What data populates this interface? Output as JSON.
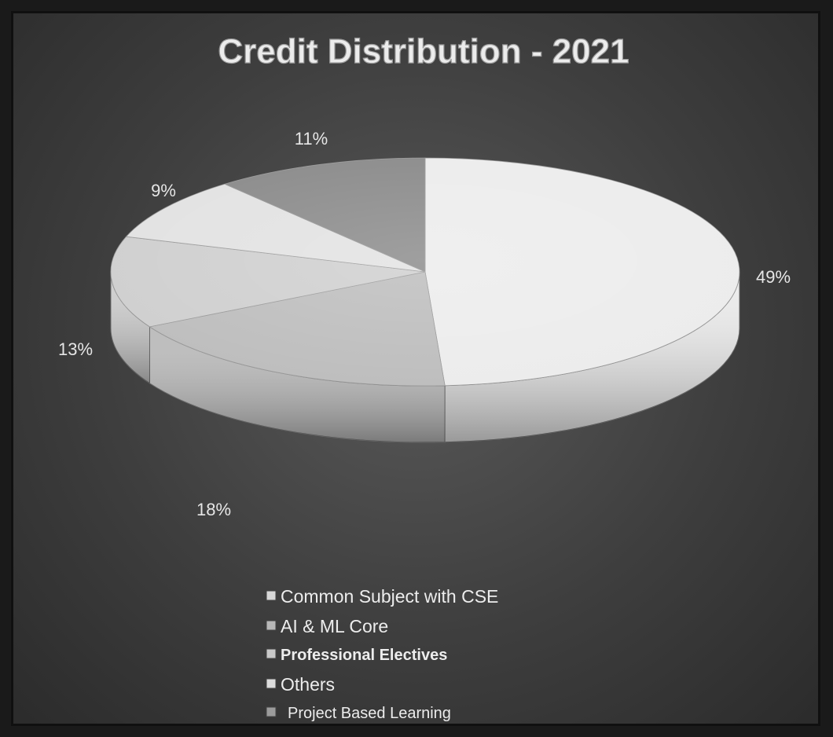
{
  "chart_data": {
    "type": "pie",
    "title": "Credit Distribution - 2021",
    "categories": [
      "Common Subject with CSE",
      "AI & ML Core",
      "Professional Electives",
      "Others",
      "Project Based Learning"
    ],
    "values": [
      49,
      18,
      13,
      9,
      11
    ],
    "labels": [
      "49%",
      "18%",
      "13%",
      "9%",
      "11%"
    ],
    "legend_position": "bottom",
    "colors": [
      "#ececec",
      "#bdbdbd",
      "#cfcfcf",
      "#e2e2e2",
      "#8a8a8a"
    ]
  }
}
